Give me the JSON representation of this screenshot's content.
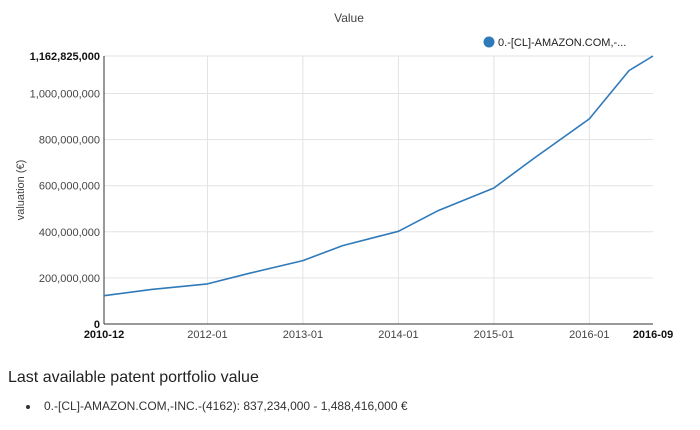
{
  "colors": {
    "series": "#2f7ab9",
    "grid": "#e3e3e3",
    "axis": "#333333",
    "text": "#444444"
  },
  "chart_data": {
    "type": "line",
    "title": "Value",
    "ylabel": "valuation (€)",
    "xlabel": "",
    "ylim": [
      0,
      1162825000
    ],
    "y_ticks": [
      {
        "value": 0,
        "label": "0",
        "bold": true
      },
      {
        "value": 200000000,
        "label": "200,000,000",
        "bold": false
      },
      {
        "value": 400000000,
        "label": "400,000,000",
        "bold": false
      },
      {
        "value": 600000000,
        "label": "600,000,000",
        "bold": false
      },
      {
        "value": 800000000,
        "label": "800,000,000",
        "bold": false
      },
      {
        "value": 1000000000,
        "label": "1,000,000,000",
        "bold": false
      },
      {
        "value": 1162825000,
        "label": "1,162,825,000",
        "bold": true
      }
    ],
    "x_ticks": [
      {
        "value": "2010-12",
        "label": "2010-12",
        "bold": true
      },
      {
        "value": "2012-01",
        "label": "2012-01",
        "bold": false
      },
      {
        "value": "2013-01",
        "label": "2013-01",
        "bold": false
      },
      {
        "value": "2014-01",
        "label": "2014-01",
        "bold": false
      },
      {
        "value": "2015-01",
        "label": "2015-01",
        "bold": false
      },
      {
        "value": "2016-01",
        "label": "2016-01",
        "bold": false
      },
      {
        "value": "2016-09",
        "label": "2016-09",
        "bold": true
      }
    ],
    "xlim": [
      "2010-12",
      "2016-09"
    ],
    "grid": true,
    "legend_position": "top-right",
    "series": [
      {
        "name": "0.-[CL]-AMAZON.COM,-...",
        "x": [
          "2010-12",
          "2011-06",
          "2012-01",
          "2012-06",
          "2013-01",
          "2013-06",
          "2014-01",
          "2014-06",
          "2015-01",
          "2015-06",
          "2016-01",
          "2016-06",
          "2016-09"
        ],
        "values": [
          123000000,
          150000000,
          174000000,
          218000000,
          275000000,
          340000000,
          402000000,
          492000000,
          590000000,
          718000000,
          890000000,
          1100000000,
          1162825000
        ]
      }
    ]
  },
  "summary": {
    "title": "Last available patent portfolio value",
    "items": [
      "0.-[CL]-AMAZON.COM,-INC.-(4162): 837,234,000 - 1,488,416,000 €"
    ]
  }
}
